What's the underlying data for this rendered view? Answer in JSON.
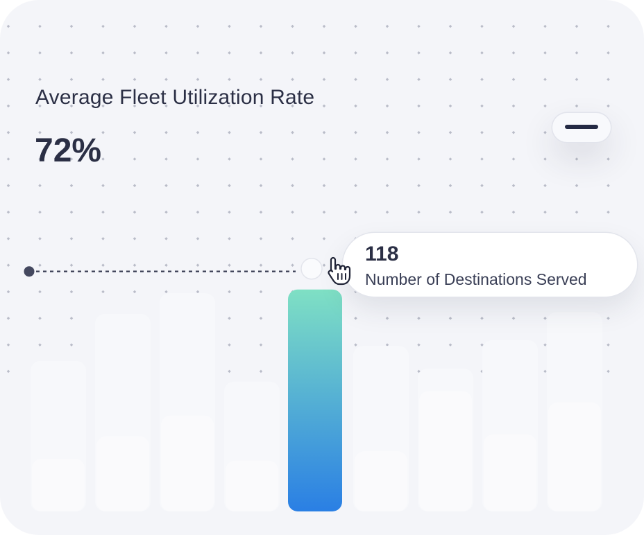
{
  "card": {
    "title": "Average Fleet Utilization Rate",
    "value": "72%"
  },
  "controls": {
    "collapse_icon": "minus-icon"
  },
  "tooltip": {
    "value": "118",
    "label": "Number of Destinations Served"
  },
  "colors": {
    "background": "#f4f5f9",
    "text": "#2b2f45",
    "bar_gradient_top": "#7fe0c4",
    "bar_gradient_bottom": "#2a7fe4",
    "ghost_bar": "#fafafc"
  },
  "chart_data": {
    "type": "bar",
    "highlighted_index": 4,
    "ylim": [
      0,
      140
    ],
    "values": [
      28,
      40,
      51,
      27,
      118,
      32,
      64,
      41,
      58
    ],
    "background_values": [
      80,
      105,
      116,
      69,
      118,
      88,
      76,
      91,
      106
    ],
    "grid": false,
    "legend": "none"
  }
}
